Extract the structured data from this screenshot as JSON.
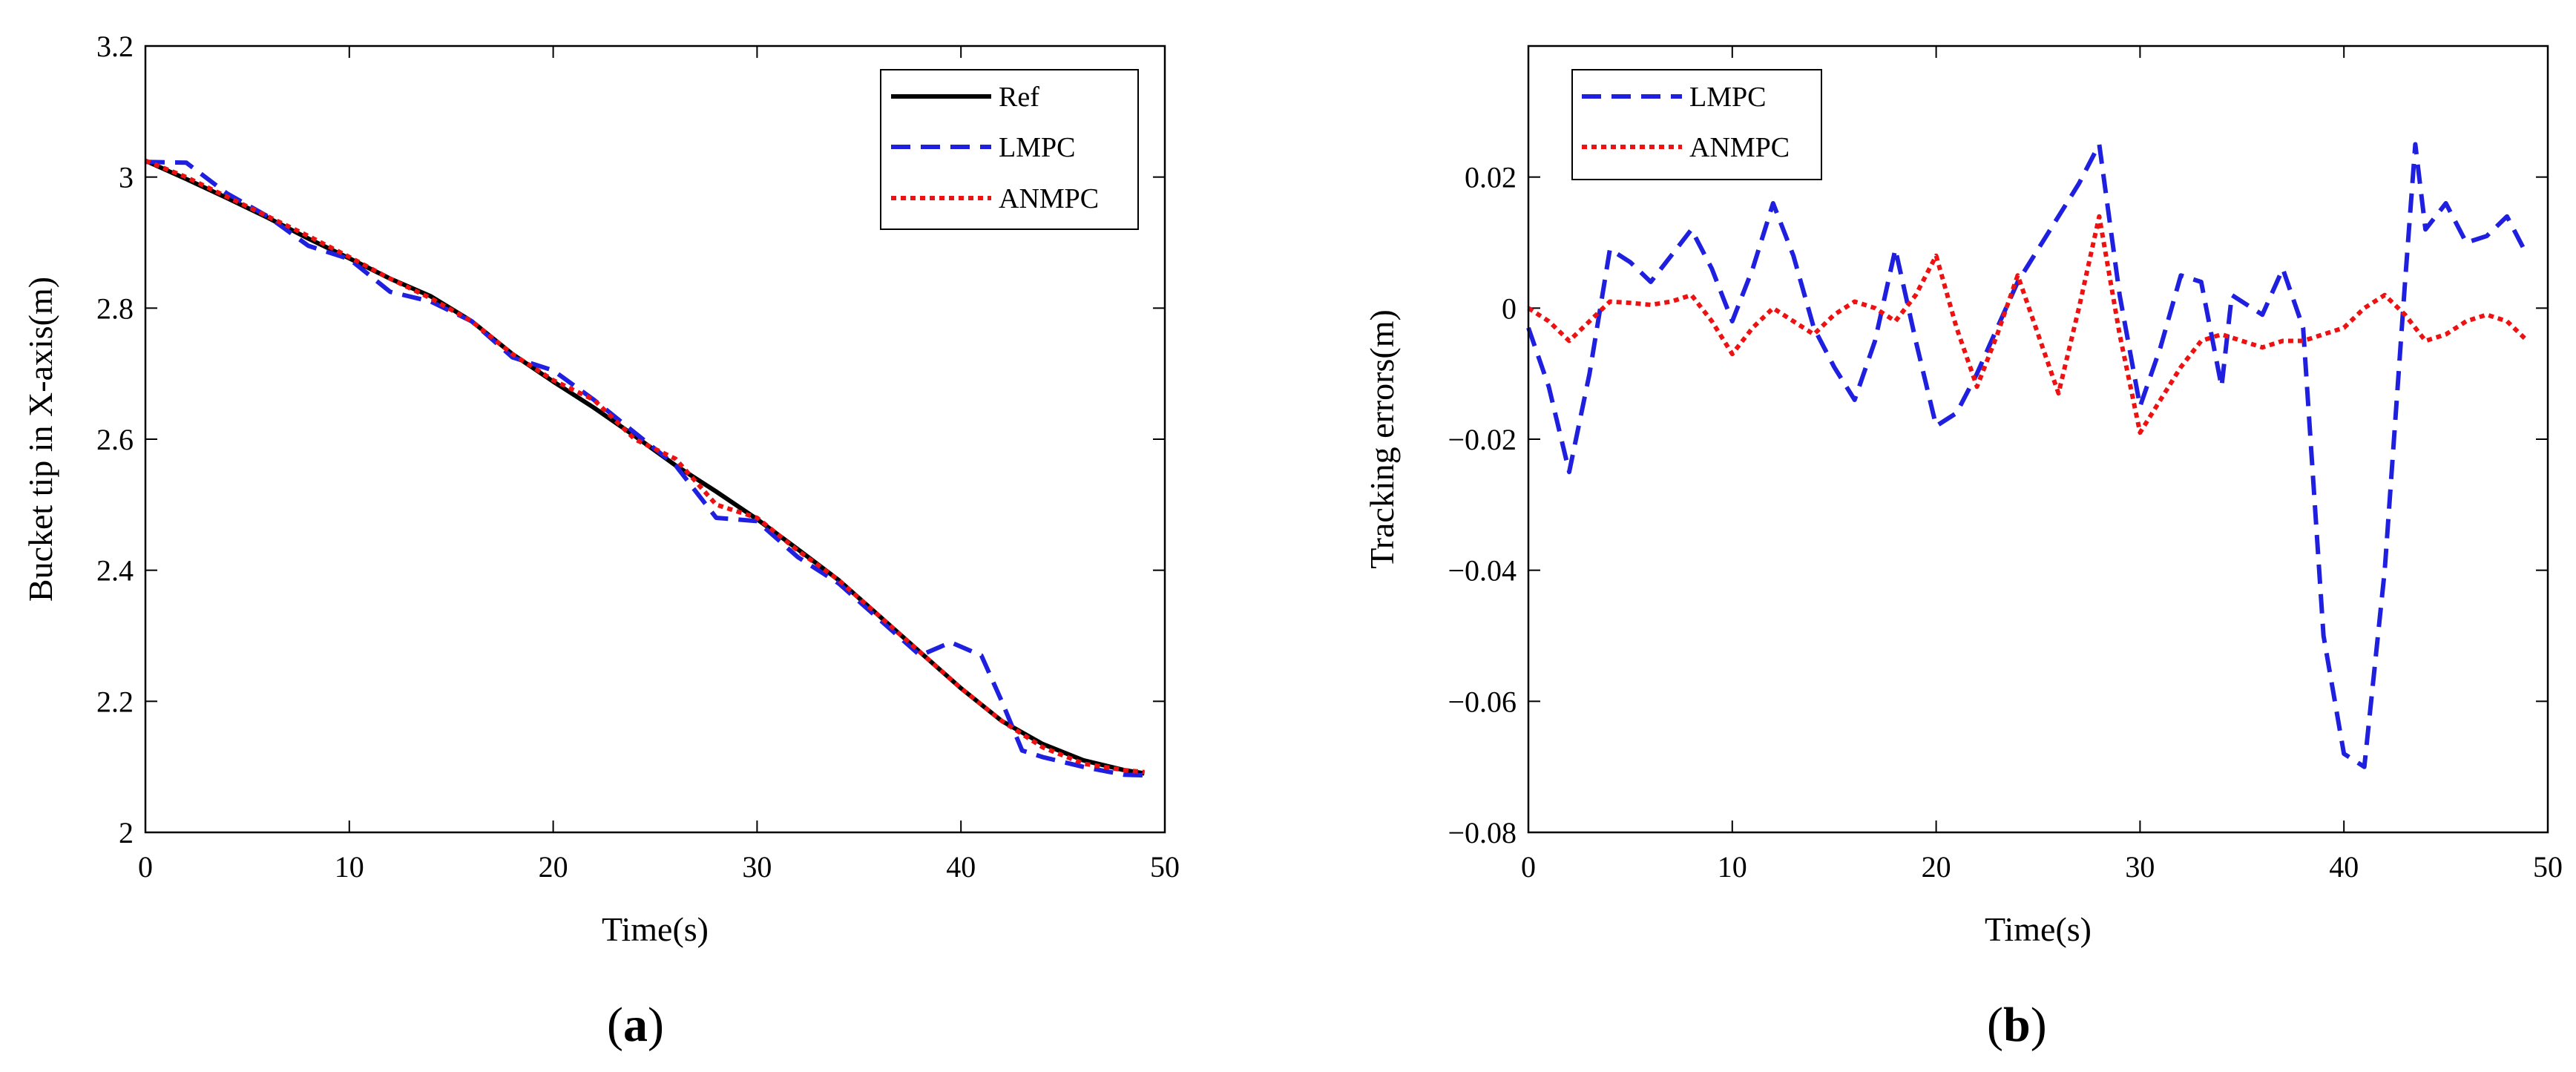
{
  "chart_data": [
    {
      "type": "line",
      "panel_label": "(a)",
      "panel_letter": "a",
      "xlabel": "Time(s)",
      "ylabel": "Bucket tip in X-axis(m)",
      "xlim": [
        0,
        50
      ],
      "ylim": [
        2,
        3.2
      ],
      "xticks": [
        0,
        10,
        20,
        30,
        40,
        50
      ],
      "yticks": [
        2,
        2.2,
        2.4,
        2.6,
        2.8,
        3,
        3.2
      ],
      "xtick_labels": [
        "0",
        "10",
        "20",
        "30",
        "40",
        "50"
      ],
      "ytick_labels": [
        "2",
        "2.2",
        "2.4",
        "2.6",
        "2.8",
        "3",
        "3.2"
      ],
      "legend_position": "top-right",
      "series": [
        {
          "name": "Ref",
          "color": "#000000",
          "style": "solid",
          "x": [
            0,
            2,
            4,
            6,
            8,
            10,
            12,
            14,
            16,
            18,
            20,
            22,
            24,
            26,
            28,
            30,
            32,
            34,
            36,
            38,
            40,
            42,
            44,
            46,
            48,
            49
          ],
          "y": [
            3.025,
            2.997,
            2.968,
            2.938,
            2.906,
            2.876,
            2.845,
            2.818,
            2.78,
            2.73,
            2.688,
            2.648,
            2.605,
            2.56,
            2.52,
            2.478,
            2.432,
            2.385,
            2.33,
            2.275,
            2.22,
            2.17,
            2.135,
            2.11,
            2.095,
            2.09
          ]
        },
        {
          "name": "LMPC",
          "color": "#1f1fe0",
          "style": "dashed",
          "x": [
            0,
            2,
            4,
            6,
            8,
            10,
            12,
            14,
            16,
            18,
            20,
            22,
            24,
            26,
            28,
            30,
            32,
            34,
            36,
            38,
            39.5,
            41,
            42,
            43,
            44,
            46,
            48,
            49
          ],
          "y": [
            3.023,
            3.022,
            2.975,
            2.94,
            2.895,
            2.875,
            2.825,
            2.81,
            2.78,
            2.725,
            2.705,
            2.66,
            2.61,
            2.56,
            2.48,
            2.475,
            2.42,
            2.38,
            2.325,
            2.27,
            2.29,
            2.27,
            2.2,
            2.125,
            2.115,
            2.1,
            2.088,
            2.087
          ]
        },
        {
          "name": "ANMPC",
          "color": "#ee1111",
          "style": "dotted",
          "x": [
            0,
            2,
            4,
            6,
            8,
            10,
            12,
            14,
            16,
            18,
            20,
            22,
            24,
            26,
            28,
            30,
            32,
            34,
            36,
            38,
            40,
            42,
            44,
            46,
            48,
            49
          ],
          "y": [
            3.025,
            3.0,
            2.97,
            2.94,
            2.91,
            2.878,
            2.845,
            2.815,
            2.78,
            2.73,
            2.69,
            2.66,
            2.6,
            2.57,
            2.5,
            2.48,
            2.43,
            2.385,
            2.33,
            2.275,
            2.22,
            2.17,
            2.13,
            2.105,
            2.095,
            2.092
          ]
        }
      ]
    },
    {
      "type": "line",
      "panel_label": "(b)",
      "panel_letter": "b",
      "xlabel": "Time(s)",
      "ylabel": "Tracking errors(m)",
      "xlim": [
        0,
        50
      ],
      "ylim": [
        -0.08,
        0.04
      ],
      "xticks": [
        0,
        10,
        20,
        30,
        40,
        50
      ],
      "yticks": [
        -0.08,
        -0.06,
        -0.04,
        -0.02,
        0,
        0.02
      ],
      "xtick_labels": [
        "0",
        "10",
        "20",
        "30",
        "40",
        "50"
      ],
      "ytick_labels": [
        "−0.08",
        "−0.06",
        "−0.04",
        "−0.02",
        "0",
        "0.02"
      ],
      "legend_position": "top-left",
      "series": [
        {
          "name": "LMPC",
          "color": "#1f1fe0",
          "style": "dashed",
          "x": [
            0,
            1,
            2,
            3,
            4,
            5,
            6,
            7,
            8,
            9,
            10,
            11,
            12,
            13,
            14,
            15,
            16,
            17,
            18,
            19,
            20,
            21,
            22,
            23,
            24,
            25,
            26,
            27,
            28,
            29,
            30,
            31,
            32,
            33,
            34,
            34.5,
            35,
            36,
            37,
            38,
            39,
            40,
            41,
            42,
            43,
            43.5,
            44,
            45,
            46,
            47,
            48,
            49
          ],
          "y": [
            -0.003,
            -0.012,
            -0.025,
            -0.01,
            0.009,
            0.007,
            0.004,
            0.008,
            0.012,
            0.006,
            -0.002,
            0.006,
            0.016,
            0.008,
            -0.003,
            -0.009,
            -0.014,
            -0.005,
            0.009,
            -0.005,
            -0.018,
            -0.016,
            -0.01,
            -0.003,
            0.004,
            0.009,
            0.014,
            0.019,
            0.025,
            0.002,
            -0.015,
            -0.006,
            0.005,
            0.004,
            -0.012,
            0.002,
            0.001,
            -0.001,
            0.006,
            -0.003,
            -0.05,
            -0.068,
            -0.07,
            -0.04,
            0.004,
            0.025,
            0.012,
            0.016,
            0.01,
            0.011,
            0.014,
            0.008
          ]
        },
        {
          "name": "ANMPC",
          "color": "#ee1111",
          "style": "dotted",
          "x": [
            0,
            1,
            2,
            3,
            4,
            5,
            6,
            7,
            8,
            9,
            10,
            11,
            12,
            13,
            14,
            15,
            16,
            17,
            18,
            19,
            20,
            21,
            22,
            23,
            24,
            25,
            26,
            27,
            28,
            29,
            30,
            31,
            32,
            33,
            34,
            35,
            36,
            37,
            38,
            39,
            40,
            41,
            42,
            43,
            44,
            45,
            46,
            47,
            48,
            49
          ],
          "y": [
            0,
            -0.002,
            -0.005,
            -0.002,
            0.001,
            0.0008,
            0.0005,
            0.001,
            0.002,
            -0.002,
            -0.007,
            -0.003,
            0.0,
            -0.002,
            -0.004,
            -0.001,
            0.001,
            0.0,
            -0.002,
            0.002,
            0.008,
            -0.003,
            -0.012,
            -0.004,
            0.005,
            -0.004,
            -0.013,
            0.0,
            0.014,
            -0.004,
            -0.019,
            -0.014,
            -0.009,
            -0.005,
            -0.004,
            -0.005,
            -0.006,
            -0.005,
            -0.005,
            -0.004,
            -0.003,
            0.0,
            0.002,
            -0.001,
            -0.005,
            -0.004,
            -0.002,
            -0.001,
            -0.002,
            -0.005
          ]
        }
      ]
    }
  ]
}
